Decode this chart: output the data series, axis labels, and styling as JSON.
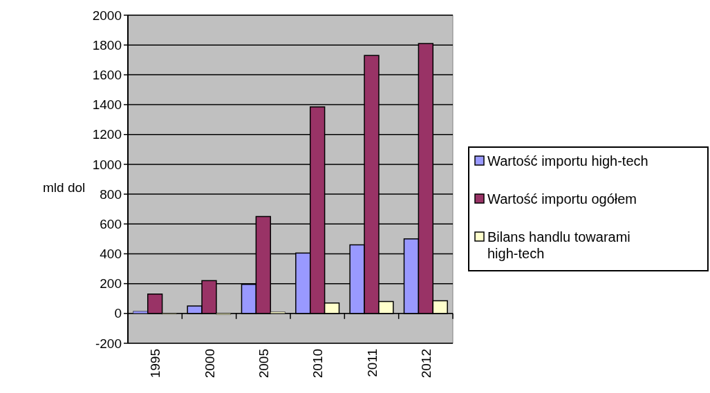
{
  "chart_data": {
    "type": "bar",
    "ylabel": "mld dol",
    "categories": [
      "1995",
      "2000",
      "2005",
      "2010",
      "2011",
      "2012"
    ],
    "series": [
      {
        "name": "Wartość importu high-tech",
        "color": "#9999ff",
        "values": [
          15,
          50,
          195,
          405,
          460,
          500
        ]
      },
      {
        "name": "Wartość importu ogółem",
        "color": "#993366",
        "values": [
          130,
          220,
          650,
          1385,
          1730,
          1810
        ]
      },
      {
        "name": "Bilans handlu towarami high-tech",
        "color": "#ffffcc",
        "values": [
          -5,
          -8,
          10,
          70,
          80,
          85
        ]
      }
    ],
    "ylim": [
      -200,
      2000
    ],
    "yticks": [
      -200,
      0,
      200,
      400,
      600,
      800,
      1000,
      1200,
      1400,
      1600,
      1800,
      2000
    ],
    "grid": "y",
    "legend": "right"
  }
}
